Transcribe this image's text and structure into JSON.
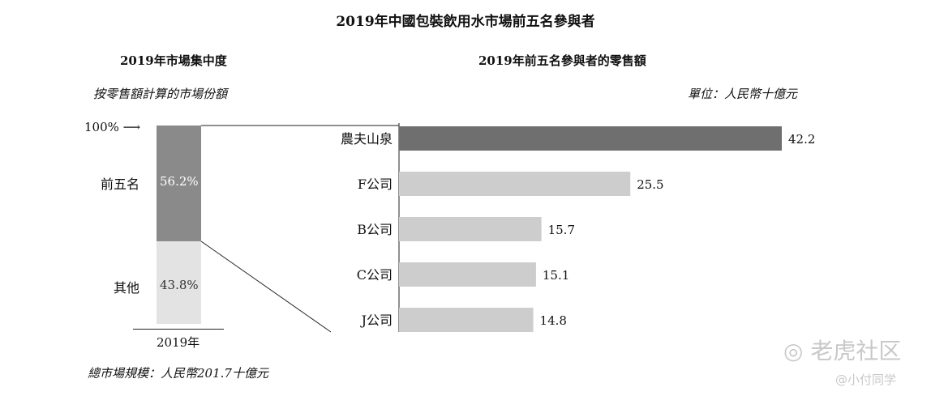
{
  "title": "2019年中國包裝飲用水市場前五名參與者",
  "left": {
    "heading": "2019年市場集中度",
    "note": "按零售額計算的市場份額",
    "pct100_label": "100%",
    "arrow": "⟶",
    "segments": [
      {
        "name": "前五名",
        "label": "56.2%",
        "value": 56.2
      },
      {
        "name": "其他",
        "label": "43.8%",
        "value": 43.8
      }
    ],
    "xlabel": "2019年",
    "footer": "總市場規模：人民幣201.7十億元"
  },
  "right": {
    "heading": "2019年前五名參與者的零售額",
    "unit": "單位：人民幣十億元"
  },
  "chart_data": [
    {
      "type": "bar",
      "orientation": "vertical-stacked",
      "title": "2019年市場集中度",
      "subtitle": "按零售額計算的市場份額",
      "categories": [
        "2019年"
      ],
      "series": [
        {
          "name": "前五名",
          "values": [
            56.2
          ]
        },
        {
          "name": "其他",
          "values": [
            43.8
          ]
        }
      ],
      "ylim": [
        0,
        100
      ],
      "colors": [
        "#8a8a8a",
        "#e3e3e3"
      ]
    },
    {
      "type": "bar",
      "orientation": "horizontal",
      "title": "2019年前五名參與者的零售額",
      "categories": [
        "農夫山泉",
        "F公司",
        "B公司",
        "C公司",
        "J公司"
      ],
      "values": [
        42.2,
        25.5,
        15.7,
        15.1,
        14.8
      ],
      "ylabel": "單位：人民幣十億元",
      "xlim": [
        0,
        42.2
      ],
      "colors": [
        "#6f6f6f",
        "#cdcdcd",
        "#cdcdcd",
        "#cdcdcd",
        "#cdcdcd"
      ]
    }
  ],
  "watermark": {
    "brand": "老虎社区",
    "user": "@小付同学"
  }
}
